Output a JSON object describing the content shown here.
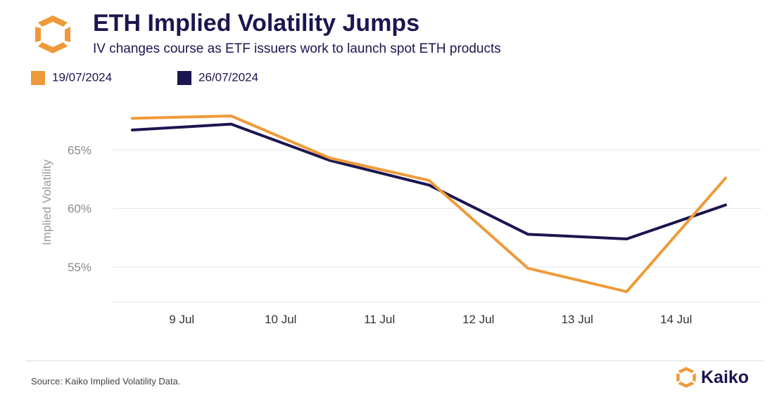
{
  "header": {
    "title": "ETH Implied Volatility Jumps",
    "subtitle": "IV changes course as ETF issuers work to launch spot ETH products",
    "logo_icon": "kaiko-hexagon-logo-icon"
  },
  "colors": {
    "series_1": "#ef9a3a",
    "series_2": "#1b1650",
    "title": "#1b1650",
    "gridline": "#e6e6e6",
    "axis_text": "#8a8a8a"
  },
  "chart_data": {
    "type": "line",
    "title": "ETH Implied Volatility Jumps",
    "subtitle": "IV changes course as ETF issuers work to launch spot ETH products",
    "xlabel": "",
    "ylabel": "Implied Volatility",
    "x": [
      "8 Jul 12:00",
      "9 Jul 12:00",
      "10 Jul 12:00",
      "11 Jul 12:00",
      "12 Jul 12:00",
      "13 Jul 12:00",
      "14 Jul 12:00"
    ],
    "x_ticks": [
      "9 Jul",
      "10 Jul",
      "11 Jul",
      "12 Jul",
      "13 Jul",
      "14 Jul"
    ],
    "y_ticks": [
      "55%",
      "60%",
      "65%"
    ],
    "y_tick_values": [
      55,
      60,
      65
    ],
    "ylim": [
      52,
      70
    ],
    "grid": "horizontal",
    "legend_position": "top-left",
    "series": [
      {
        "name": "19/07/2024",
        "values": [
          67.7,
          67.9,
          64.3,
          62.4,
          54.9,
          52.9,
          62.6
        ]
      },
      {
        "name": "26/07/2024",
        "values": [
          66.7,
          67.2,
          64.1,
          62.0,
          57.8,
          57.4,
          60.3
        ]
      }
    ]
  },
  "footer": {
    "source": "Source: Kaiko Implied Volatility Data.",
    "brand_name": "Kaiko",
    "brand_icon": "kaiko-hexagon-logo-icon"
  }
}
